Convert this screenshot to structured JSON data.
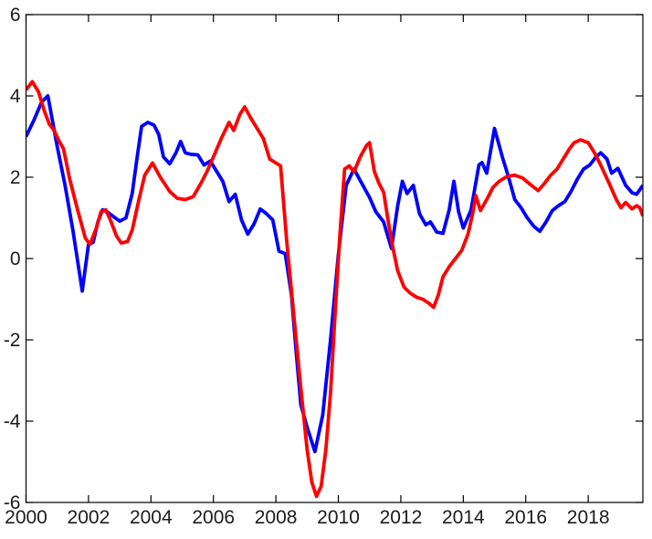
{
  "figure": {
    "background": "#ffffff",
    "description": "Two-series line chart, no title, no legend, MATLAB-style box axes"
  },
  "chart_data": {
    "type": "line",
    "title": "",
    "xlabel": "",
    "ylabel": "",
    "xlim": [
      2000,
      2019.75
    ],
    "ylim": [
      -6,
      6
    ],
    "x_ticks": [
      2000,
      2002,
      2004,
      2006,
      2008,
      2010,
      2012,
      2014,
      2016,
      2018
    ],
    "x_tick_labels": [
      "2000",
      "2002",
      "2004",
      "2006",
      "2008",
      "2010",
      "2012",
      "2014",
      "2016",
      "2018"
    ],
    "y_ticks": [
      -6,
      -4,
      -2,
      0,
      2,
      4,
      6
    ],
    "y_tick_labels": [
      "-6",
      "-4",
      "-2",
      "0",
      "2",
      "4",
      "6"
    ],
    "grid": false,
    "box": true,
    "tick_direction": "in",
    "legend": null,
    "axis_color": "#000000",
    "tick_label_color": "#1c1c1c",
    "tick_font_size": 21,
    "series": [
      {
        "name": "blue-line",
        "color": "#0000ff",
        "line_width": 3.8,
        "points": [
          [
            2000.0,
            3.0
          ],
          [
            2000.25,
            3.4
          ],
          [
            2000.5,
            3.85
          ],
          [
            2000.7,
            4.0
          ],
          [
            2001.0,
            2.75
          ],
          [
            2001.25,
            1.8
          ],
          [
            2001.5,
            0.7
          ],
          [
            2001.8,
            -0.8
          ],
          [
            2002.0,
            0.35
          ],
          [
            2002.15,
            0.4
          ],
          [
            2002.3,
            0.9
          ],
          [
            2002.45,
            1.2
          ],
          [
            2002.6,
            1.15
          ],
          [
            2002.8,
            1.03
          ],
          [
            2003.0,
            0.92
          ],
          [
            2003.2,
            1.0
          ],
          [
            2003.4,
            1.6
          ],
          [
            2003.55,
            2.45
          ],
          [
            2003.7,
            3.25
          ],
          [
            2003.9,
            3.35
          ],
          [
            2004.1,
            3.28
          ],
          [
            2004.25,
            3.05
          ],
          [
            2004.4,
            2.5
          ],
          [
            2004.6,
            2.33
          ],
          [
            2004.8,
            2.6
          ],
          [
            2004.95,
            2.88
          ],
          [
            2005.1,
            2.6
          ],
          [
            2005.3,
            2.56
          ],
          [
            2005.5,
            2.55
          ],
          [
            2005.7,
            2.3
          ],
          [
            2005.9,
            2.4
          ],
          [
            2006.1,
            2.15
          ],
          [
            2006.3,
            1.9
          ],
          [
            2006.5,
            1.4
          ],
          [
            2006.7,
            1.58
          ],
          [
            2006.9,
            0.95
          ],
          [
            2007.1,
            0.6
          ],
          [
            2007.3,
            0.85
          ],
          [
            2007.5,
            1.22
          ],
          [
            2007.7,
            1.1
          ],
          [
            2007.9,
            0.95
          ],
          [
            2008.1,
            0.18
          ],
          [
            2008.3,
            0.12
          ],
          [
            2008.5,
            -0.9
          ],
          [
            2008.65,
            -2.3
          ],
          [
            2008.8,
            -3.6
          ],
          [
            2009.0,
            -4.15
          ],
          [
            2009.25,
            -4.75
          ],
          [
            2009.5,
            -3.85
          ],
          [
            2009.75,
            -2.0
          ],
          [
            2010.0,
            0.1
          ],
          [
            2010.25,
            1.8
          ],
          [
            2010.5,
            2.2
          ],
          [
            2010.75,
            1.85
          ],
          [
            2011.0,
            1.5
          ],
          [
            2011.2,
            1.15
          ],
          [
            2011.45,
            0.9
          ],
          [
            2011.7,
            0.25
          ],
          [
            2011.9,
            1.3
          ],
          [
            2012.05,
            1.9
          ],
          [
            2012.2,
            1.6
          ],
          [
            2012.4,
            1.8
          ],
          [
            2012.6,
            1.1
          ],
          [
            2012.8,
            0.83
          ],
          [
            2012.95,
            0.9
          ],
          [
            2013.15,
            0.65
          ],
          [
            2013.35,
            0.62
          ],
          [
            2013.55,
            1.2
          ],
          [
            2013.7,
            1.9
          ],
          [
            2013.85,
            1.15
          ],
          [
            2014.0,
            0.75
          ],
          [
            2014.25,
            1.2
          ],
          [
            2014.5,
            2.3
          ],
          [
            2014.6,
            2.36
          ],
          [
            2014.75,
            2.1
          ],
          [
            2015.0,
            3.2
          ],
          [
            2015.25,
            2.5
          ],
          [
            2015.45,
            2.0
          ],
          [
            2015.65,
            1.45
          ],
          [
            2015.85,
            1.25
          ],
          [
            2016.05,
            1.0
          ],
          [
            2016.25,
            0.8
          ],
          [
            2016.45,
            0.67
          ],
          [
            2016.65,
            0.9
          ],
          [
            2016.85,
            1.18
          ],
          [
            2017.05,
            1.3
          ],
          [
            2017.25,
            1.4
          ],
          [
            2017.45,
            1.65
          ],
          [
            2017.65,
            1.95
          ],
          [
            2017.85,
            2.2
          ],
          [
            2018.05,
            2.3
          ],
          [
            2018.25,
            2.5
          ],
          [
            2018.4,
            2.6
          ],
          [
            2018.6,
            2.45
          ],
          [
            2018.75,
            2.1
          ],
          [
            2018.95,
            2.22
          ],
          [
            2019.2,
            1.8
          ],
          [
            2019.4,
            1.62
          ],
          [
            2019.55,
            1.58
          ],
          [
            2019.75,
            1.8
          ]
        ]
      },
      {
        "name": "red-line",
        "color": "#ff0000",
        "line_width": 3.8,
        "points": [
          [
            2000.0,
            4.15
          ],
          [
            2000.2,
            4.35
          ],
          [
            2000.4,
            4.1
          ],
          [
            2000.6,
            3.6
          ],
          [
            2000.75,
            3.3
          ],
          [
            2000.9,
            3.15
          ],
          [
            2001.05,
            2.9
          ],
          [
            2001.2,
            2.7
          ],
          [
            2001.4,
            1.95
          ],
          [
            2001.65,
            1.2
          ],
          [
            2001.9,
            0.5
          ],
          [
            2002.05,
            0.35
          ],
          [
            2002.25,
            0.75
          ],
          [
            2002.4,
            1.15
          ],
          [
            2002.55,
            1.2
          ],
          [
            2002.7,
            0.95
          ],
          [
            2002.9,
            0.55
          ],
          [
            2003.05,
            0.38
          ],
          [
            2003.25,
            0.42
          ],
          [
            2003.4,
            0.7
          ],
          [
            2003.6,
            1.4
          ],
          [
            2003.8,
            2.05
          ],
          [
            2004.05,
            2.35
          ],
          [
            2004.3,
            2.0
          ],
          [
            2004.6,
            1.65
          ],
          [
            2004.85,
            1.48
          ],
          [
            2005.1,
            1.45
          ],
          [
            2005.35,
            1.52
          ],
          [
            2005.6,
            1.85
          ],
          [
            2005.8,
            2.15
          ],
          [
            2006.0,
            2.5
          ],
          [
            2006.25,
            2.95
          ],
          [
            2006.5,
            3.35
          ],
          [
            2006.65,
            3.15
          ],
          [
            2006.85,
            3.55
          ],
          [
            2007.0,
            3.73
          ],
          [
            2007.2,
            3.45
          ],
          [
            2007.4,
            3.2
          ],
          [
            2007.6,
            2.95
          ],
          [
            2007.8,
            2.45
          ],
          [
            2008.0,
            2.35
          ],
          [
            2008.15,
            2.28
          ],
          [
            2008.35,
            0.4
          ],
          [
            2008.5,
            -0.8
          ],
          [
            2008.65,
            -2.0
          ],
          [
            2008.8,
            -3.2
          ],
          [
            2009.0,
            -4.7
          ],
          [
            2009.15,
            -5.5
          ],
          [
            2009.3,
            -5.85
          ],
          [
            2009.45,
            -5.6
          ],
          [
            2009.6,
            -4.7
          ],
          [
            2009.75,
            -3.3
          ],
          [
            2009.9,
            -1.3
          ],
          [
            2010.05,
            0.6
          ],
          [
            2010.2,
            2.2
          ],
          [
            2010.35,
            2.28
          ],
          [
            2010.5,
            2.13
          ],
          [
            2010.7,
            2.5
          ],
          [
            2010.9,
            2.78
          ],
          [
            2011.0,
            2.85
          ],
          [
            2011.15,
            2.15
          ],
          [
            2011.3,
            1.85
          ],
          [
            2011.45,
            1.63
          ],
          [
            2011.6,
            0.9
          ],
          [
            2011.75,
            0.25
          ],
          [
            2011.9,
            -0.3
          ],
          [
            2012.1,
            -0.7
          ],
          [
            2012.3,
            -0.85
          ],
          [
            2012.5,
            -0.95
          ],
          [
            2012.7,
            -1.0
          ],
          [
            2012.9,
            -1.1
          ],
          [
            2013.05,
            -1.2
          ],
          [
            2013.2,
            -0.9
          ],
          [
            2013.35,
            -0.45
          ],
          [
            2013.55,
            -0.2
          ],
          [
            2013.75,
            0.0
          ],
          [
            2013.95,
            0.2
          ],
          [
            2014.15,
            0.6
          ],
          [
            2014.3,
            1.1
          ],
          [
            2014.4,
            1.55
          ],
          [
            2014.55,
            1.18
          ],
          [
            2014.75,
            1.45
          ],
          [
            2014.95,
            1.75
          ],
          [
            2015.15,
            1.9
          ],
          [
            2015.4,
            2.02
          ],
          [
            2015.65,
            2.05
          ],
          [
            2015.9,
            1.98
          ],
          [
            2016.15,
            1.82
          ],
          [
            2016.4,
            1.67
          ],
          [
            2016.6,
            1.85
          ],
          [
            2016.8,
            2.05
          ],
          [
            2017.0,
            2.2
          ],
          [
            2017.2,
            2.45
          ],
          [
            2017.4,
            2.7
          ],
          [
            2017.55,
            2.85
          ],
          [
            2017.75,
            2.92
          ],
          [
            2018.0,
            2.85
          ],
          [
            2018.2,
            2.6
          ],
          [
            2018.4,
            2.3
          ],
          [
            2018.55,
            2.05
          ],
          [
            2018.7,
            1.8
          ],
          [
            2018.9,
            1.45
          ],
          [
            2019.05,
            1.25
          ],
          [
            2019.2,
            1.38
          ],
          [
            2019.4,
            1.22
          ],
          [
            2019.55,
            1.3
          ],
          [
            2019.65,
            1.25
          ],
          [
            2019.75,
            1.05
          ]
        ]
      }
    ]
  }
}
